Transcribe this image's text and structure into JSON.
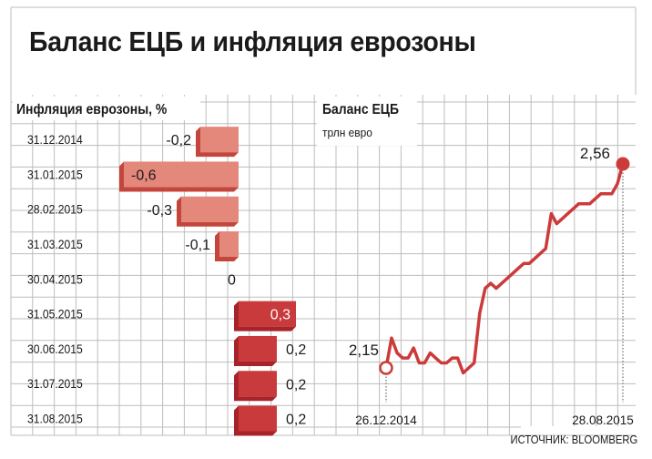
{
  "header": {
    "title": "Баланс ЕЦБ и инфляция еврозоны"
  },
  "colors": {
    "background": "#ffffff",
    "grid": "#bdbdbd",
    "bar_negative": "#e3887b",
    "bar_negative_side": "#c4453b",
    "bar_positive": "#c83a3b",
    "bar_positive_side": "#a82229",
    "line": "#cc3b3a"
  },
  "chart_data": [
    {
      "type": "bar",
      "orientation": "horizontal",
      "title": "Инфляция еврозоны, %",
      "categories": [
        "31.12.2014",
        "31.01.2015",
        "28.02.2015",
        "31.03.2015",
        "30.04.2015",
        "31.05.2015",
        "30.06.2015",
        "31.07.2015",
        "31.08.2015"
      ],
      "values": [
        -0.2,
        -0.6,
        -0.3,
        -0.1,
        0,
        0.3,
        0.2,
        0.2,
        0.2
      ],
      "value_labels": [
        "-0,2",
        "-0,6",
        "-0,3",
        "-0,1",
        "0",
        "0,3",
        "0,2",
        "0,2",
        "0,2"
      ],
      "xlim": [
        -0.6,
        0.3
      ]
    },
    {
      "type": "line",
      "title": "Баланс ЕЦБ",
      "subtitle": "трлн евро",
      "x_labels": [
        "26.12.2014",
        "28.08.2015"
      ],
      "values": [
        2.15,
        2.21,
        2.18,
        2.17,
        2.17,
        2.19,
        2.16,
        2.16,
        2.18,
        2.17,
        2.16,
        2.16,
        2.17,
        2.17,
        2.14,
        2.15,
        2.16,
        2.26,
        2.31,
        2.32,
        2.31,
        2.32,
        2.33,
        2.34,
        2.35,
        2.36,
        2.36,
        2.37,
        2.38,
        2.39,
        2.46,
        2.44,
        2.45,
        2.46,
        2.47,
        2.48,
        2.48,
        2.48,
        2.49,
        2.5,
        2.5,
        2.5,
        2.52,
        2.56
      ],
      "start_label": "2,15",
      "end_label": "2,56",
      "ylim": [
        2.1,
        2.6
      ]
    }
  ],
  "footer": {
    "source": "ИСТОЧНИК: BLOOMBERG"
  }
}
